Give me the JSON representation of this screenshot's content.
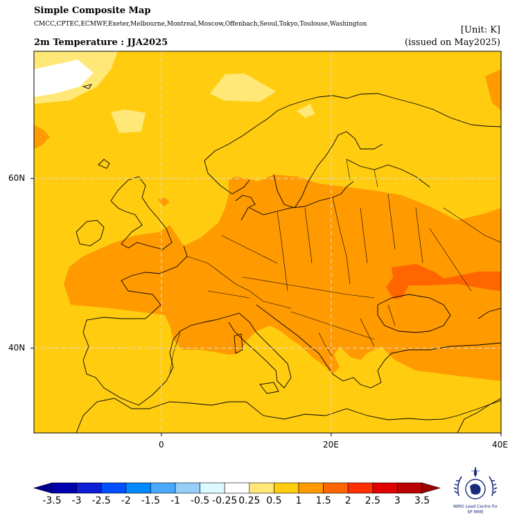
{
  "header": {
    "title": "Simple Composite Map",
    "centres": "CMCC,CPTEC,ECMWF,Exeter,Melbourne,Montreal,Moscow,Offenbach,Seoul,Tokyo,Toulouse,Washington",
    "unit": "[Unit: K]",
    "subtitle": "2m Temperature : JJA2025",
    "issued": "(issued on May2025)"
  },
  "map": {
    "lon_range": [
      -15,
      40
    ],
    "lat_range": [
      30,
      75
    ],
    "lat_ticks": [
      {
        "value": 60,
        "label": "60N"
      },
      {
        "value": 40,
        "label": "40N"
      }
    ],
    "lon_ticks": [
      {
        "value": 0,
        "label": "0"
      },
      {
        "value": 20,
        "label": "20E"
      },
      {
        "value": 40,
        "label": "40E"
      }
    ],
    "background_category": "0.5 to 1"
  },
  "colorbar": {
    "labels": [
      "-3.5",
      "-3",
      "-2.5",
      "-2",
      "-1.5",
      "-1",
      "-0.5",
      "-0.25",
      "0.25",
      "0.5",
      "1",
      "1.5",
      "2",
      "2.5",
      "3",
      "3.5"
    ],
    "colors": [
      "#0000b0",
      "#0a1fd6",
      "#0050ff",
      "#0088ff",
      "#4aa8ff",
      "#96cefa",
      "#dcf9ff",
      "#ffffff",
      "#ffe878",
      "#ffcc10",
      "#ff9a00",
      "#ff6600",
      "#ff3000",
      "#e00000",
      "#b80000"
    ],
    "low_color": "#000090",
    "high_color": "#a00000"
  },
  "logo": {
    "text_line1": "WMO Lead Centre for",
    "text_line2": "SP MME"
  }
}
